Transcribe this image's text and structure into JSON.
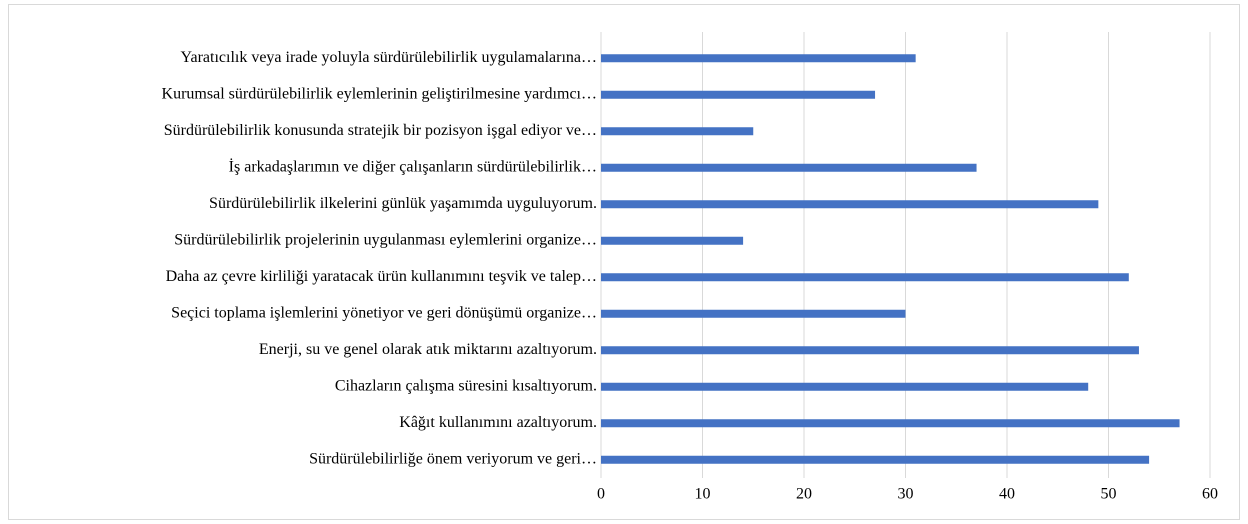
{
  "chart_data": {
    "type": "hbar",
    "categories": [
      "Yaratıcılık veya irade yoluyla sürdürülebilirlik uygulamalarına…",
      "Kurumsal sürdürülebilirlik eylemlerinin geliştirilmesine yardımcı…",
      "Sürdürülebilirlik konusunda stratejik bir pozisyon işgal ediyor ve…",
      "İş arkadaşlarımın ve diğer çalışanların sürdürülebilirlik…",
      "Sürdürülebilirlik ilkelerini günlük yaşamımda uyguluyorum.",
      "Sürdürülebilirlik projelerinin uygulanması eylemlerini organize…",
      "Daha az çevre kirliliği yaratacak ürün kullanımını teşvik ve talep…",
      "Seçici toplama işlemlerini yönetiyor ve geri dönüşümü organize…",
      "Enerji, su ve genel olarak atık miktarını azaltıyorum.",
      "Cihazların çalışma süresini kısaltıyorum.",
      "Kâğıt kullanımını azaltıyorum.",
      "Sürdürülebilirliğe önem veriyorum ve geri…"
    ],
    "values": [
      31,
      27,
      15,
      37,
      49,
      14,
      52,
      30,
      53,
      48,
      57,
      54
    ],
    "color": "#4472c4",
    "xlim": [
      0,
      60
    ],
    "xticks": [
      0,
      10,
      20,
      30,
      40,
      50,
      60
    ],
    "grid": true
  }
}
